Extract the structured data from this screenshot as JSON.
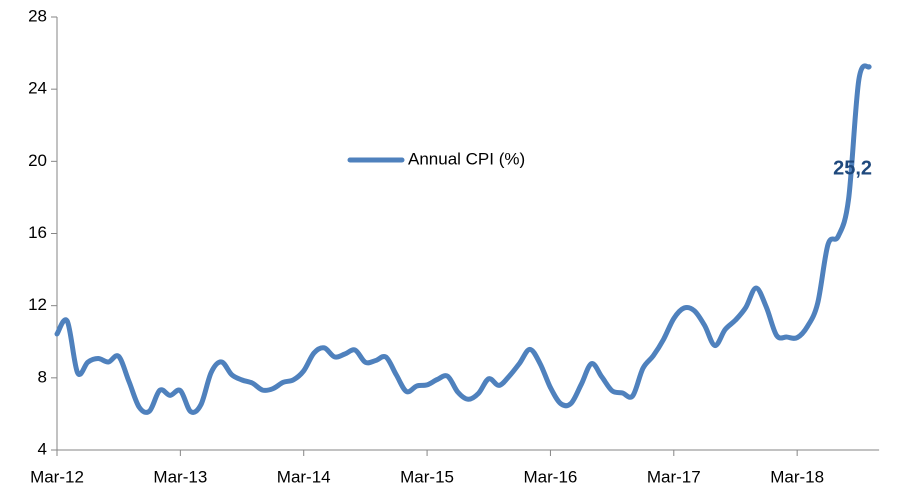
{
  "chart_data": {
    "type": "line",
    "categories": [
      "Mar-12",
      null,
      null,
      null,
      null,
      null,
      null,
      null,
      null,
      null,
      null,
      null,
      "Mar-13",
      null,
      null,
      null,
      null,
      null,
      null,
      null,
      null,
      null,
      null,
      null,
      "Mar-14",
      null,
      null,
      null,
      null,
      null,
      null,
      null,
      null,
      null,
      null,
      null,
      "Mar-15",
      null,
      null,
      null,
      null,
      null,
      null,
      null,
      null,
      null,
      null,
      null,
      "Mar-16",
      null,
      null,
      null,
      null,
      null,
      null,
      null,
      null,
      null,
      null,
      null,
      "Mar-17",
      null,
      null,
      null,
      null,
      null,
      null,
      null,
      null,
      null,
      null,
      null,
      "Mar-18",
      null,
      null,
      null,
      null,
      null,
      null,
      null
    ],
    "series": [
      {
        "name": "Annual CPI (%)",
        "color": "#4f81bd",
        "values": [
          10.43,
          11.14,
          8.28,
          8.87,
          9.07,
          8.88,
          9.19,
          7.8,
          6.37,
          6.16,
          7.31,
          7.03,
          7.29,
          6.13,
          6.51,
          8.3,
          8.88,
          8.17,
          7.88,
          7.71,
          7.32,
          7.4,
          7.75,
          7.89,
          8.39,
          9.38,
          9.66,
          9.16,
          9.32,
          9.54,
          8.86,
          8.96,
          9.15,
          8.17,
          7.24,
          7.55,
          7.61,
          7.91,
          8.09,
          7.2,
          6.81,
          7.14,
          7.95,
          7.58,
          8.1,
          8.81,
          9.58,
          8.78,
          7.46,
          6.57,
          6.58,
          7.64,
          8.79,
          8.05,
          7.28,
          7.16,
          7.0,
          8.53,
          9.22,
          10.13,
          11.29,
          11.87,
          11.72,
          10.9,
          9.79,
          10.68,
          11.2,
          11.9,
          12.98,
          11.92,
          10.35,
          10.26,
          10.23,
          10.85,
          12.15,
          15.39,
          15.85,
          17.9,
          24.52,
          25.24
        ],
        "value_labels": [
          null,
          null,
          null,
          null,
          null,
          null,
          null,
          null,
          null,
          null,
          null,
          null,
          null,
          null,
          null,
          null,
          null,
          null,
          null,
          null,
          null,
          null,
          null,
          null,
          null,
          null,
          null,
          null,
          null,
          null,
          null,
          null,
          null,
          null,
          null,
          null,
          null,
          null,
          null,
          null,
          null,
          null,
          null,
          null,
          null,
          null,
          null,
          null,
          null,
          null,
          null,
          null,
          null,
          null,
          null,
          null,
          null,
          null,
          null,
          null,
          null,
          null,
          null,
          null,
          null,
          null,
          null,
          null,
          null,
          null,
          null,
          null,
          null,
          null,
          null,
          null,
          null,
          "25,2"
        ]
      }
    ],
    "ylim": [
      4,
      28
    ],
    "yticks": [
      4,
      8,
      12,
      16,
      20,
      24,
      28
    ],
    "legend": "center",
    "grid": false
  }
}
